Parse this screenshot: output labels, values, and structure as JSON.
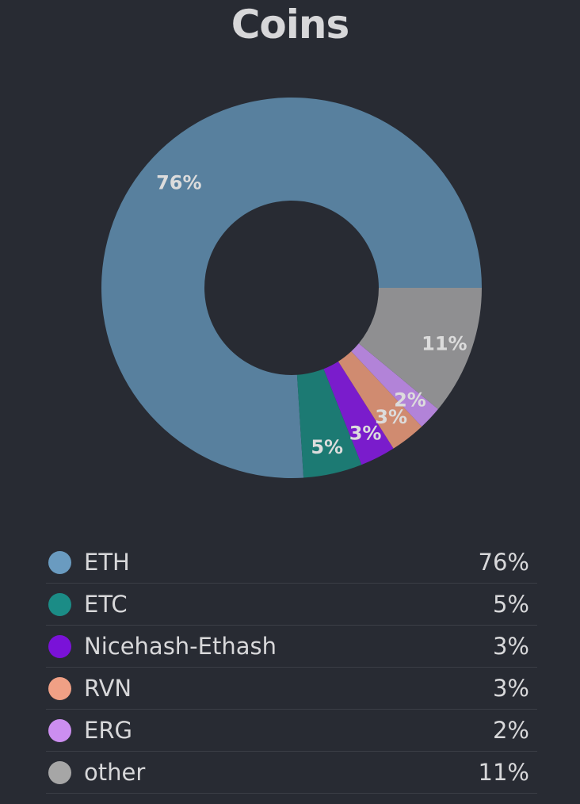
{
  "title": "Coins",
  "chart_data": {
    "type": "pie",
    "variant": "donut",
    "title": "Coins",
    "categories": [
      "ETH",
      "ETC",
      "Nicehash-Ethash",
      "RVN",
      "ERG",
      "other"
    ],
    "values": [
      76,
      5,
      3,
      3,
      2,
      11
    ],
    "labels": [
      "76%",
      "5%",
      "3%",
      "3%",
      "2%",
      "11%"
    ],
    "colors": [
      "#58809e",
      "#1c7a73",
      "#7a1ccc",
      "#d08b70",
      "#b283d8",
      "#8f8f91"
    ],
    "legend_colors": [
      "#6a9bc0",
      "#1b8c86",
      "#7a12d8",
      "#f0a085",
      "#cc8ef0",
      "#a6a6a6"
    ],
    "start_angle_deg": 90,
    "direction": "counterclockwise",
    "legend_position": "bottom"
  }
}
